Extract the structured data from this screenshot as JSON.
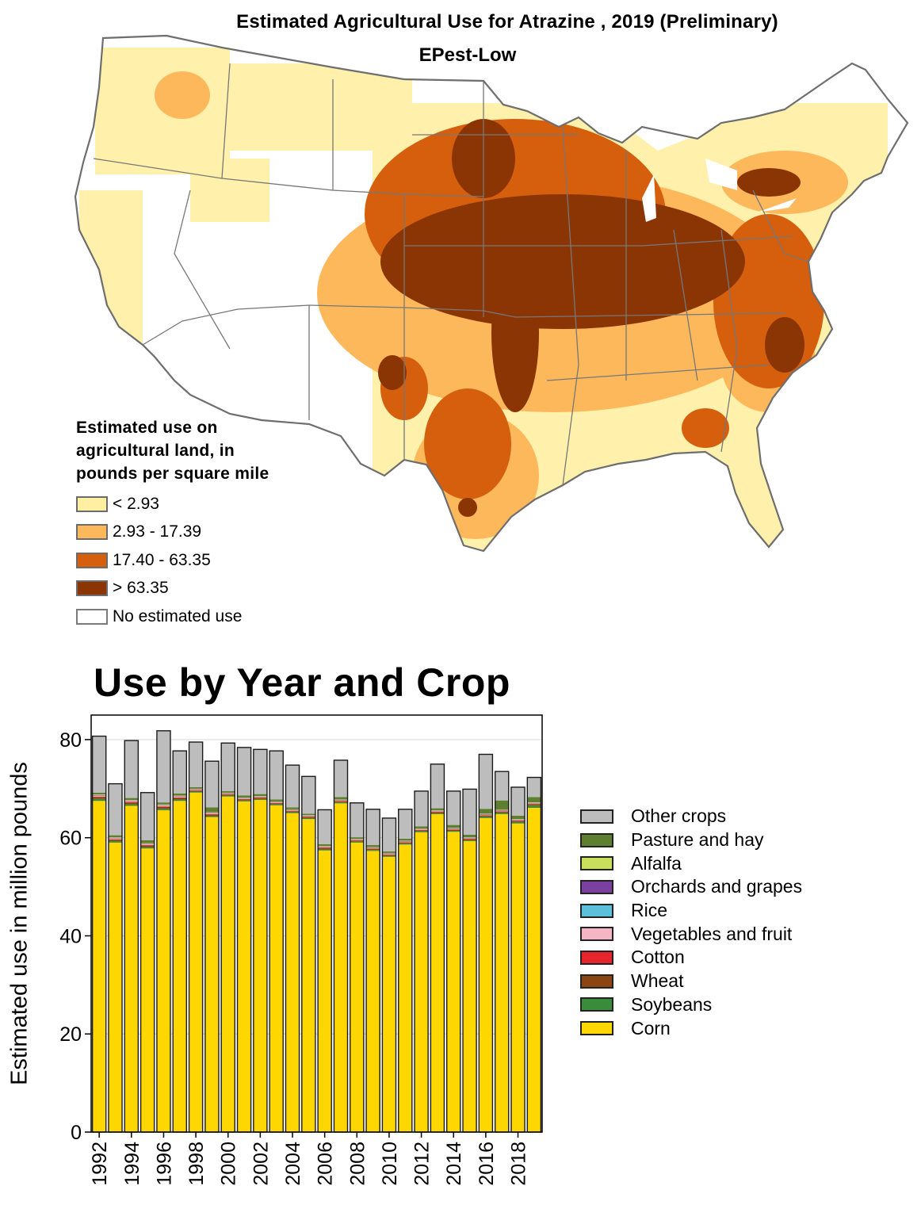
{
  "map": {
    "title": "Estimated Agricultural Use for Atrazine , 2019 (Preliminary)",
    "subtitle": "EPest-Low",
    "legend": {
      "title_lines": [
        "Estimated use on",
        "agricultural land, in",
        "pounds per square mile"
      ],
      "items": [
        {
          "label": "< 2.93",
          "color": "#FFEFA3"
        },
        {
          "label": "2.93 - 17.39",
          "color": "#FDB85C"
        },
        {
          "label": "17.40 - 63.35",
          "color": "#D65F0E"
        },
        {
          "label": "> 63.35",
          "color": "#8B3505"
        },
        {
          "label": "No estimated use",
          "color": "#FFFFFF"
        }
      ]
    }
  },
  "chart_data": {
    "type": "bar",
    "stacked": true,
    "title": "Use by Year and Crop",
    "xlabel": "",
    "ylabel": "Estimated use in million pounds",
    "ylim": [
      0,
      85
    ],
    "yticks": [
      0,
      20,
      40,
      60,
      80
    ],
    "x": [
      1992,
      1993,
      1994,
      1995,
      1996,
      1997,
      1998,
      1999,
      2000,
      2001,
      2002,
      2003,
      2004,
      2005,
      2006,
      2007,
      2008,
      2009,
      2010,
      2011,
      2012,
      2013,
      2014,
      2015,
      2016,
      2017,
      2018,
      2019
    ],
    "xtick_labels": [
      "1992",
      "1994",
      "1996",
      "1998",
      "2000",
      "2002",
      "2004",
      "2006",
      "2008",
      "2010",
      "2012",
      "2014",
      "2016",
      "2018"
    ],
    "series": [
      {
        "name": "Corn",
        "color": "#FFD700",
        "values": [
          67.5,
          59.0,
          66.5,
          57.8,
          65.6,
          67.5,
          69.2,
          64.2,
          68.4,
          67.4,
          67.7,
          66.6,
          65.0,
          63.8,
          57.4,
          67.0,
          59.0,
          57.3,
          56.1,
          58.6,
          61.1,
          64.8,
          61.2,
          59.3,
          64.0,
          64.8,
          62.9,
          66.1
        ]
      },
      {
        "name": "Soybeans",
        "color": "#3A8C3A",
        "values": [
          0.4,
          0.3,
          0.3,
          0.3,
          0.3,
          0.3,
          0.2,
          0.2,
          0.2,
          0.2,
          0.2,
          0.2,
          0.2,
          0.2,
          0.2,
          0.2,
          0.2,
          0.2,
          0.2,
          0.2,
          0.2,
          0.2,
          0.2,
          0.2,
          0.3,
          0.3,
          0.3,
          0.5
        ]
      },
      {
        "name": "Wheat",
        "color": "#8B4513",
        "values": [
          0.4,
          0.3,
          0.4,
          0.3,
          0.4,
          0.3,
          0.2,
          0.3,
          0.2,
          0.2,
          0.2,
          0.2,
          0.2,
          0.2,
          0.3,
          0.2,
          0.2,
          0.2,
          0.2,
          0.2,
          0.2,
          0.2,
          0.2,
          0.2,
          0.2,
          0.2,
          0.2,
          0.2
        ]
      },
      {
        "name": "Cotton",
        "color": "#E8242C",
        "values": [
          0.1,
          0.1,
          0.1,
          0.1,
          0.1,
          0.1,
          0.1,
          0.1,
          0.1,
          0.1,
          0.1,
          0.1,
          0.1,
          0.1,
          0.1,
          0.1,
          0.1,
          0.1,
          0.1,
          0.1,
          0.1,
          0.1,
          0.1,
          0.1,
          0.1,
          0.1,
          0.1,
          0.1
        ]
      },
      {
        "name": "Vegetables and fruit",
        "color": "#F4B6C2",
        "values": [
          0.2,
          0.2,
          0.2,
          0.2,
          0.2,
          0.2,
          0.1,
          0.2,
          0.1,
          0.1,
          0.1,
          0.1,
          0.1,
          0.1,
          0.1,
          0.1,
          0.1,
          0.1,
          0.1,
          0.1,
          0.1,
          0.1,
          0.1,
          0.1,
          0.1,
          0.1,
          0.1,
          0.1
        ]
      },
      {
        "name": "Rice",
        "color": "#5BC0D9",
        "values": [
          0,
          0,
          0,
          0,
          0,
          0,
          0,
          0,
          0,
          0,
          0,
          0,
          0,
          0,
          0,
          0,
          0,
          0,
          0,
          0,
          0,
          0,
          0,
          0,
          0,
          0,
          0,
          0
        ]
      },
      {
        "name": "Orchards and grapes",
        "color": "#7B3FA0",
        "values": [
          0.1,
          0.1,
          0.1,
          0.1,
          0.1,
          0.1,
          0.1,
          0.1,
          0.1,
          0.1,
          0.1,
          0.1,
          0.1,
          0.1,
          0.1,
          0.1,
          0.1,
          0.1,
          0.1,
          0.1,
          0.1,
          0.1,
          0.1,
          0.1,
          0.1,
          0.1,
          0.1,
          0.1
        ]
      },
      {
        "name": "Alfalfa",
        "color": "#C9DE5A",
        "values": [
          0.1,
          0.1,
          0.1,
          0.1,
          0.1,
          0.1,
          0.1,
          0.1,
          0.1,
          0.1,
          0.1,
          0.1,
          0.1,
          0.1,
          0.1,
          0.1,
          0.1,
          0.1,
          0.1,
          0.1,
          0.1,
          0.1,
          0.1,
          0.1,
          0.1,
          0.1,
          0.1,
          0.1
        ]
      },
      {
        "name": "Pasture and hay",
        "color": "#5E7F30",
        "values": [
          0.4,
          0.4,
          0.4,
          0.6,
          0.4,
          0.4,
          0.3,
          1.0,
          0.3,
          0.4,
          0.4,
          0.4,
          0.4,
          0.3,
          0.4,
          0.5,
          0.3,
          0.4,
          0.3,
          0.4,
          0.4,
          0.4,
          0.6,
          0.5,
          1.0,
          1.9,
          0.7,
          1.1
        ]
      },
      {
        "name": "Other crops",
        "color": "#BDBDBD",
        "values": [
          11.5,
          10.5,
          11.7,
          9.7,
          14.6,
          8.7,
          9.2,
          9.4,
          9.8,
          9.8,
          9.1,
          9.9,
          8.6,
          7.6,
          7.0,
          7.5,
          7.0,
          7.3,
          6.8,
          6.0,
          7.2,
          9.0,
          6.9,
          9.3,
          11.1,
          5.9,
          5.8,
          4.0
        ]
      }
    ]
  }
}
